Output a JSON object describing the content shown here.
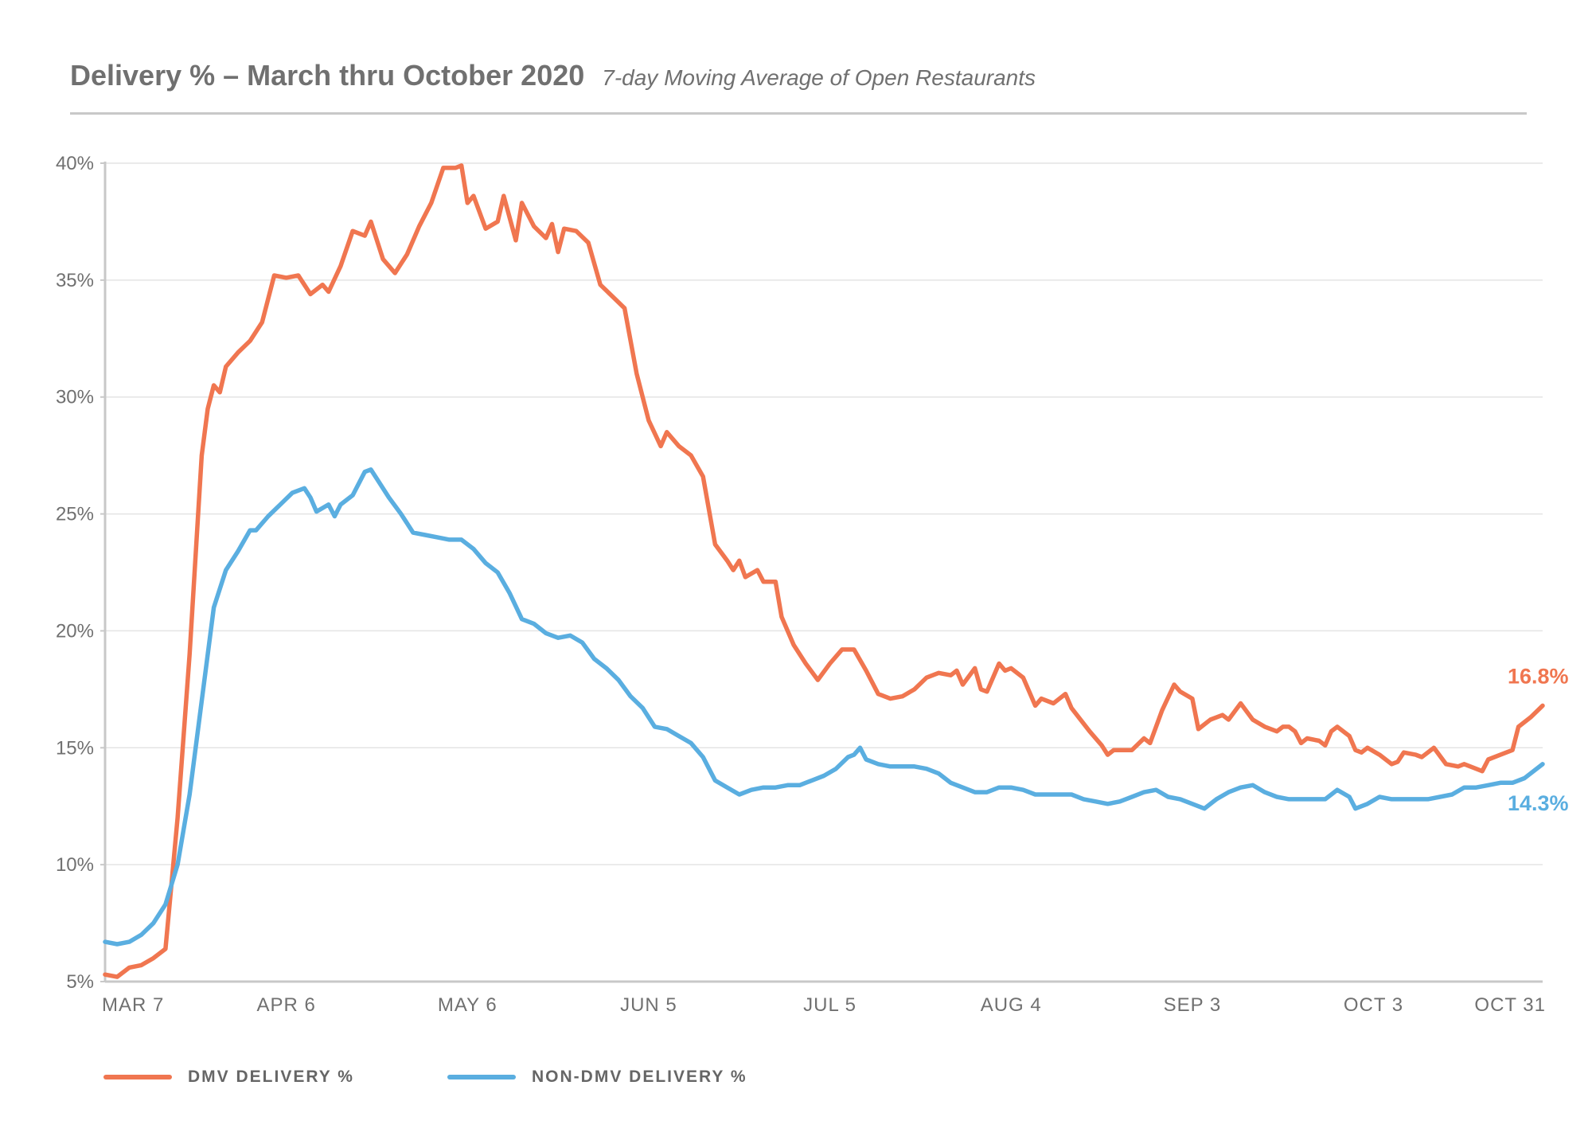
{
  "header": {
    "title": "Delivery % – March thru October 2020",
    "subtitle": "7-day Moving Average of Open Restaurants"
  },
  "legend": {
    "dmv_label": "DMV DELIVERY %",
    "non_dmv_label": "NON-DMV DELIVERY %"
  },
  "colors": {
    "dmv": "#f07650",
    "non_dmv": "#5aaee0",
    "axis": "#c8c8c8",
    "grid": "#e4e4e4",
    "text": "#707070"
  },
  "chart_data": {
    "type": "line",
    "title": "Delivery % – March thru October 2020",
    "subtitle": "7-day Moving Average of Open Restaurants",
    "xlabel": "",
    "ylabel": "",
    "xlim": [
      "2020-03-07",
      "2020-10-31"
    ],
    "ylim": [
      5,
      40
    ],
    "x_ticks": [
      "MAR 7",
      "APR 6",
      "MAY 6",
      "JUN 5",
      "JUL 5",
      "AUG 4",
      "SEP 3",
      "OCT 3",
      "OCT 31"
    ],
    "y_ticks": [
      "5%",
      "10%",
      "15%",
      "20%",
      "25%",
      "30%",
      "35%",
      "40%"
    ],
    "grid": "horizontal",
    "legend_position": "bottom-left",
    "series": [
      {
        "name": "DMV DELIVERY %",
        "color": "#f07650",
        "end_label": "16.8%",
        "points": [
          [
            "2020-03-07",
            5.3
          ],
          [
            "2020-03-09",
            5.2
          ],
          [
            "2020-03-11",
            5.6
          ],
          [
            "2020-03-13",
            5.7
          ],
          [
            "2020-03-15",
            6.0
          ],
          [
            "2020-03-17",
            6.4
          ],
          [
            "2020-03-19",
            12.0
          ],
          [
            "2020-03-21",
            19.0
          ],
          [
            "2020-03-23",
            27.5
          ],
          [
            "2020-03-24",
            29.5
          ],
          [
            "2020-03-25",
            30.5
          ],
          [
            "2020-03-26",
            30.2
          ],
          [
            "2020-03-27",
            31.3
          ],
          [
            "2020-03-29",
            31.9
          ],
          [
            "2020-03-31",
            32.4
          ],
          [
            "2020-04-02",
            33.2
          ],
          [
            "2020-04-04",
            35.2
          ],
          [
            "2020-04-06",
            35.1
          ],
          [
            "2020-04-08",
            35.2
          ],
          [
            "2020-04-10",
            34.4
          ],
          [
            "2020-04-12",
            34.8
          ],
          [
            "2020-04-13",
            34.5
          ],
          [
            "2020-04-15",
            35.6
          ],
          [
            "2020-04-17",
            37.1
          ],
          [
            "2020-04-19",
            36.9
          ],
          [
            "2020-04-20",
            37.5
          ],
          [
            "2020-04-22",
            35.9
          ],
          [
            "2020-04-24",
            35.3
          ],
          [
            "2020-04-26",
            36.1
          ],
          [
            "2020-04-28",
            37.3
          ],
          [
            "2020-04-30",
            38.3
          ],
          [
            "2020-05-02",
            39.8
          ],
          [
            "2020-05-04",
            39.8
          ],
          [
            "2020-05-05",
            39.9
          ],
          [
            "2020-05-06",
            38.3
          ],
          [
            "2020-05-07",
            38.6
          ],
          [
            "2020-05-09",
            37.2
          ],
          [
            "2020-05-11",
            37.5
          ],
          [
            "2020-05-12",
            38.6
          ],
          [
            "2020-05-14",
            36.7
          ],
          [
            "2020-05-15",
            38.3
          ],
          [
            "2020-05-17",
            37.3
          ],
          [
            "2020-05-19",
            36.8
          ],
          [
            "2020-05-20",
            37.4
          ],
          [
            "2020-05-21",
            36.2
          ],
          [
            "2020-05-22",
            37.2
          ],
          [
            "2020-05-24",
            37.1
          ],
          [
            "2020-05-26",
            36.6
          ],
          [
            "2020-05-28",
            34.8
          ],
          [
            "2020-05-30",
            34.3
          ],
          [
            "2020-06-01",
            33.8
          ],
          [
            "2020-06-03",
            31.0
          ],
          [
            "2020-06-05",
            29.0
          ],
          [
            "2020-06-07",
            27.9
          ],
          [
            "2020-06-08",
            28.5
          ],
          [
            "2020-06-10",
            27.9
          ],
          [
            "2020-06-12",
            27.5
          ],
          [
            "2020-06-14",
            26.6
          ],
          [
            "2020-06-16",
            23.7
          ],
          [
            "2020-06-18",
            23.0
          ],
          [
            "2020-06-19",
            22.6
          ],
          [
            "2020-06-20",
            23.0
          ],
          [
            "2020-06-21",
            22.3
          ],
          [
            "2020-06-23",
            22.6
          ],
          [
            "2020-06-24",
            22.1
          ],
          [
            "2020-06-26",
            22.1
          ],
          [
            "2020-06-27",
            20.6
          ],
          [
            "2020-06-29",
            19.4
          ],
          [
            "2020-07-01",
            18.6
          ],
          [
            "2020-07-03",
            17.9
          ],
          [
            "2020-07-05",
            18.6
          ],
          [
            "2020-07-07",
            19.2
          ],
          [
            "2020-07-09",
            19.2
          ],
          [
            "2020-07-11",
            18.3
          ],
          [
            "2020-07-13",
            17.3
          ],
          [
            "2020-07-15",
            17.1
          ],
          [
            "2020-07-17",
            17.2
          ],
          [
            "2020-07-19",
            17.5
          ],
          [
            "2020-07-21",
            18.0
          ],
          [
            "2020-07-23",
            18.2
          ],
          [
            "2020-07-25",
            18.1
          ],
          [
            "2020-07-26",
            18.3
          ],
          [
            "2020-07-27",
            17.7
          ],
          [
            "2020-07-29",
            18.4
          ],
          [
            "2020-07-30",
            17.5
          ],
          [
            "2020-07-31",
            17.4
          ],
          [
            "2020-08-02",
            18.6
          ],
          [
            "2020-08-03",
            18.3
          ],
          [
            "2020-08-04",
            18.4
          ],
          [
            "2020-08-06",
            18.0
          ],
          [
            "2020-08-08",
            16.8
          ],
          [
            "2020-08-09",
            17.1
          ],
          [
            "2020-08-11",
            16.9
          ],
          [
            "2020-08-13",
            17.3
          ],
          [
            "2020-08-14",
            16.7
          ],
          [
            "2020-08-17",
            15.7
          ],
          [
            "2020-08-19",
            15.1
          ],
          [
            "2020-08-20",
            14.7
          ],
          [
            "2020-08-21",
            14.9
          ],
          [
            "2020-08-24",
            14.9
          ],
          [
            "2020-08-26",
            15.4
          ],
          [
            "2020-08-27",
            15.2
          ],
          [
            "2020-08-29",
            16.6
          ],
          [
            "2020-08-31",
            17.7
          ],
          [
            "2020-09-01",
            17.4
          ],
          [
            "2020-09-03",
            17.1
          ],
          [
            "2020-09-04",
            15.8
          ],
          [
            "2020-09-06",
            16.2
          ],
          [
            "2020-09-08",
            16.4
          ],
          [
            "2020-09-09",
            16.2
          ],
          [
            "2020-09-11",
            16.9
          ],
          [
            "2020-09-13",
            16.2
          ],
          [
            "2020-09-15",
            15.9
          ],
          [
            "2020-09-17",
            15.7
          ],
          [
            "2020-09-18",
            15.9
          ],
          [
            "2020-09-19",
            15.9
          ],
          [
            "2020-09-20",
            15.7
          ],
          [
            "2020-09-21",
            15.2
          ],
          [
            "2020-09-22",
            15.4
          ],
          [
            "2020-09-24",
            15.3
          ],
          [
            "2020-09-25",
            15.1
          ],
          [
            "2020-09-26",
            15.7
          ],
          [
            "2020-09-27",
            15.9
          ],
          [
            "2020-09-29",
            15.5
          ],
          [
            "2020-09-30",
            14.9
          ],
          [
            "2020-10-01",
            14.8
          ],
          [
            "2020-10-02",
            15.0
          ],
          [
            "2020-10-04",
            14.7
          ],
          [
            "2020-10-06",
            14.3
          ],
          [
            "2020-10-07",
            14.4
          ],
          [
            "2020-10-08",
            14.8
          ],
          [
            "2020-10-10",
            14.7
          ],
          [
            "2020-10-11",
            14.6
          ],
          [
            "2020-10-13",
            15.0
          ],
          [
            "2020-10-15",
            14.3
          ],
          [
            "2020-10-17",
            14.2
          ],
          [
            "2020-10-18",
            14.3
          ],
          [
            "2020-10-20",
            14.1
          ],
          [
            "2020-10-21",
            14.0
          ],
          [
            "2020-10-22",
            14.5
          ],
          [
            "2020-10-24",
            14.7
          ],
          [
            "2020-10-26",
            14.9
          ],
          [
            "2020-10-27",
            15.9
          ],
          [
            "2020-10-29",
            16.3
          ],
          [
            "2020-10-31",
            16.8
          ]
        ]
      },
      {
        "name": "NON-DMV DELIVERY %",
        "color": "#5aaee0",
        "end_label": "14.3%",
        "points": [
          [
            "2020-03-07",
            6.7
          ],
          [
            "2020-03-09",
            6.6
          ],
          [
            "2020-03-11",
            6.7
          ],
          [
            "2020-03-13",
            7.0
          ],
          [
            "2020-03-15",
            7.5
          ],
          [
            "2020-03-17",
            8.3
          ],
          [
            "2020-03-19",
            10.0
          ],
          [
            "2020-03-21",
            13.0
          ],
          [
            "2020-03-23",
            17.0
          ],
          [
            "2020-03-25",
            21.0
          ],
          [
            "2020-03-27",
            22.6
          ],
          [
            "2020-03-29",
            23.4
          ],
          [
            "2020-03-31",
            24.3
          ],
          [
            "2020-04-01",
            24.3
          ],
          [
            "2020-04-03",
            24.9
          ],
          [
            "2020-04-05",
            25.4
          ],
          [
            "2020-04-07",
            25.9
          ],
          [
            "2020-04-09",
            26.1
          ],
          [
            "2020-04-10",
            25.7
          ],
          [
            "2020-04-11",
            25.1
          ],
          [
            "2020-04-13",
            25.4
          ],
          [
            "2020-04-14",
            24.9
          ],
          [
            "2020-04-15",
            25.4
          ],
          [
            "2020-04-17",
            25.8
          ],
          [
            "2020-04-19",
            26.8
          ],
          [
            "2020-04-20",
            26.9
          ],
          [
            "2020-04-21",
            26.5
          ],
          [
            "2020-04-23",
            25.7
          ],
          [
            "2020-04-25",
            25.0
          ],
          [
            "2020-04-27",
            24.2
          ],
          [
            "2020-04-29",
            24.1
          ],
          [
            "2020-05-01",
            24.0
          ],
          [
            "2020-05-03",
            23.9
          ],
          [
            "2020-05-05",
            23.9
          ],
          [
            "2020-05-07",
            23.5
          ],
          [
            "2020-05-09",
            22.9
          ],
          [
            "2020-05-11",
            22.5
          ],
          [
            "2020-05-13",
            21.6
          ],
          [
            "2020-05-15",
            20.5
          ],
          [
            "2020-05-17",
            20.3
          ],
          [
            "2020-05-19",
            19.9
          ],
          [
            "2020-05-21",
            19.7
          ],
          [
            "2020-05-23",
            19.8
          ],
          [
            "2020-05-25",
            19.5
          ],
          [
            "2020-05-27",
            18.8
          ],
          [
            "2020-05-29",
            18.4
          ],
          [
            "2020-05-31",
            17.9
          ],
          [
            "2020-06-02",
            17.2
          ],
          [
            "2020-06-04",
            16.7
          ],
          [
            "2020-06-06",
            15.9
          ],
          [
            "2020-06-08",
            15.8
          ],
          [
            "2020-06-10",
            15.5
          ],
          [
            "2020-06-12",
            15.2
          ],
          [
            "2020-06-14",
            14.6
          ],
          [
            "2020-06-16",
            13.6
          ],
          [
            "2020-06-18",
            13.3
          ],
          [
            "2020-06-20",
            13.0
          ],
          [
            "2020-06-22",
            13.2
          ],
          [
            "2020-06-24",
            13.3
          ],
          [
            "2020-06-26",
            13.3
          ],
          [
            "2020-06-28",
            13.4
          ],
          [
            "2020-06-30",
            13.4
          ],
          [
            "2020-07-02",
            13.6
          ],
          [
            "2020-07-04",
            13.8
          ],
          [
            "2020-07-06",
            14.1
          ],
          [
            "2020-07-08",
            14.6
          ],
          [
            "2020-07-09",
            14.7
          ],
          [
            "2020-07-10",
            15.0
          ],
          [
            "2020-07-11",
            14.5
          ],
          [
            "2020-07-13",
            14.3
          ],
          [
            "2020-07-15",
            14.2
          ],
          [
            "2020-07-17",
            14.2
          ],
          [
            "2020-07-19",
            14.2
          ],
          [
            "2020-07-21",
            14.1
          ],
          [
            "2020-07-23",
            13.9
          ],
          [
            "2020-07-25",
            13.5
          ],
          [
            "2020-07-27",
            13.3
          ],
          [
            "2020-07-29",
            13.1
          ],
          [
            "2020-07-31",
            13.1
          ],
          [
            "2020-08-02",
            13.3
          ],
          [
            "2020-08-04",
            13.3
          ],
          [
            "2020-08-06",
            13.2
          ],
          [
            "2020-08-08",
            13.0
          ],
          [
            "2020-08-10",
            13.0
          ],
          [
            "2020-08-12",
            13.0
          ],
          [
            "2020-08-14",
            13.0
          ],
          [
            "2020-08-16",
            12.8
          ],
          [
            "2020-08-18",
            12.7
          ],
          [
            "2020-08-20",
            12.6
          ],
          [
            "2020-08-22",
            12.7
          ],
          [
            "2020-08-24",
            12.9
          ],
          [
            "2020-08-26",
            13.1
          ],
          [
            "2020-08-28",
            13.2
          ],
          [
            "2020-08-30",
            12.9
          ],
          [
            "2020-09-01",
            12.8
          ],
          [
            "2020-09-03",
            12.6
          ],
          [
            "2020-09-05",
            12.4
          ],
          [
            "2020-09-07",
            12.8
          ],
          [
            "2020-09-09",
            13.1
          ],
          [
            "2020-09-11",
            13.3
          ],
          [
            "2020-09-13",
            13.4
          ],
          [
            "2020-09-15",
            13.1
          ],
          [
            "2020-09-17",
            12.9
          ],
          [
            "2020-09-19",
            12.8
          ],
          [
            "2020-09-21",
            12.8
          ],
          [
            "2020-09-23",
            12.8
          ],
          [
            "2020-09-25",
            12.8
          ],
          [
            "2020-09-27",
            13.2
          ],
          [
            "2020-09-29",
            12.9
          ],
          [
            "2020-09-30",
            12.4
          ],
          [
            "2020-10-02",
            12.6
          ],
          [
            "2020-10-04",
            12.9
          ],
          [
            "2020-10-06",
            12.8
          ],
          [
            "2020-10-08",
            12.8
          ],
          [
            "2020-10-10",
            12.8
          ],
          [
            "2020-10-12",
            12.8
          ],
          [
            "2020-10-14",
            12.9
          ],
          [
            "2020-10-16",
            13.0
          ],
          [
            "2020-10-18",
            13.3
          ],
          [
            "2020-10-20",
            13.3
          ],
          [
            "2020-10-22",
            13.4
          ],
          [
            "2020-10-24",
            13.5
          ],
          [
            "2020-10-26",
            13.5
          ],
          [
            "2020-10-28",
            13.7
          ],
          [
            "2020-10-31",
            14.3
          ]
        ]
      }
    ]
  }
}
